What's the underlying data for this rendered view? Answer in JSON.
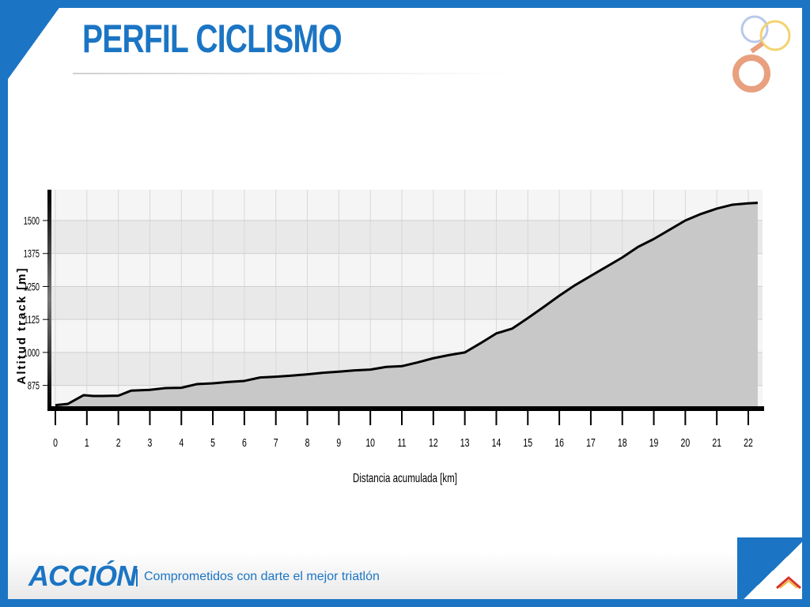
{
  "slide": {
    "title": "PERFIL CICLISMO",
    "brand": "ACCIÓN",
    "tagline": "Comprometidos con darte el mejor triatlón",
    "colors": {
      "accent": "#1b75c4",
      "fill": "#c8c8c8",
      "line": "#000000"
    },
    "logo_icon": "olympic-rings-logo-icon",
    "mini_logo_icon": "house-roof-logo-icon"
  },
  "chart_data": {
    "type": "area",
    "xlabel": "Distancia acumulada [km]",
    "ylabel": "Altitud track [m]",
    "xlim": [
      0,
      22.5
    ],
    "ylim": [
      790,
      1620
    ],
    "xticks": [
      0,
      1,
      2,
      3,
      4,
      5,
      6,
      7,
      8,
      9,
      10,
      11,
      12,
      13,
      14,
      15,
      16,
      17,
      18,
      19,
      20,
      21,
      22
    ],
    "yticks": [
      875,
      1000,
      1125,
      1250,
      1375,
      1500
    ],
    "grid": true,
    "series": [
      {
        "x": [
          0,
          0.4,
          0.7,
          0.9,
          1.2,
          1.5,
          2.0,
          2.4,
          3.0,
          3.5,
          4.0,
          4.5,
          5.0,
          5.5,
          6.0,
          6.5,
          7.0,
          7.5,
          8.0,
          8.5,
          9.0,
          9.5,
          10.0,
          10.5,
          11.0,
          11.5,
          12.0,
          12.5,
          13.0,
          13.5,
          14.0,
          14.5,
          15.0,
          15.5,
          16.0,
          16.5,
          17.0,
          17.5,
          18.0,
          18.5,
          19.0,
          19.5,
          20.0,
          20.5,
          21.0,
          21.5,
          22.0,
          22.3
        ],
        "y": [
          800,
          805,
          825,
          838,
          835,
          835,
          836,
          855,
          858,
          865,
          866,
          880,
          883,
          888,
          892,
          905,
          908,
          912,
          917,
          923,
          927,
          932,
          935,
          945,
          948,
          962,
          978,
          990,
          1000,
          1035,
          1072,
          1090,
          1130,
          1172,
          1215,
          1255,
          1290,
          1325,
          1360,
          1400,
          1430,
          1465,
          1500,
          1525,
          1545,
          1560,
          1565,
          1567
        ]
      }
    ]
  }
}
